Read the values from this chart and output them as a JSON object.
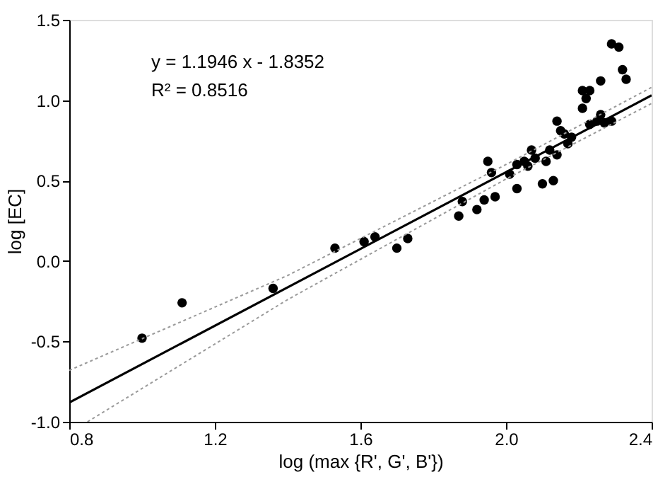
{
  "chart_data": {
    "type": "scatter",
    "xlabel": "log (max {R', G', B'})",
    "ylabel": "log [EC]",
    "xlim": [
      0.8,
      2.4
    ],
    "xticks": [
      {
        "value": 0.8,
        "label": "0.8"
      },
      {
        "value": 1.2,
        "label": "1.2"
      },
      {
        "value": 1.6,
        "label": "1.6"
      },
      {
        "value": 2.0,
        "label": "2.0"
      },
      {
        "value": 2.4,
        "label": "2.4"
      }
    ],
    "ylim": [
      -1.0,
      1.5
    ],
    "yticks": [
      {
        "value": -1.0,
        "label": "-1.0"
      },
      {
        "value": -0.5,
        "label": "-0.5"
      },
      {
        "value": 0.0,
        "label": "0.0"
      },
      {
        "value": 0.5,
        "label": "0.5"
      },
      {
        "value": 1.0,
        "label": "1.0"
      },
      {
        "value": 1.5,
        "label": "1.5"
      }
    ],
    "grid": false,
    "annotations": [
      "y = 1.1946 x - 1.8352",
      "R² = 0.8516"
    ],
    "series": [
      {
        "marker": "circle",
        "color": "#000000",
        "x": [
          1.0,
          1.11,
          1.36,
          1.53,
          1.61,
          1.64,
          1.7,
          1.73,
          1.87,
          1.92,
          1.88,
          1.94,
          1.97,
          2.03,
          1.95,
          1.96,
          2.01,
          2.03,
          2.05,
          2.06,
          2.07,
          2.08,
          2.11,
          2.1,
          2.13,
          2.12,
          2.14,
          2.14,
          2.15,
          2.16,
          2.18,
          2.17,
          2.21,
          2.23,
          2.22,
          2.21,
          2.26,
          2.23,
          2.25,
          2.26,
          2.27,
          2.29,
          2.29,
          2.31,
          2.32,
          2.33
        ],
        "values": [
          -0.48,
          -0.26,
          -0.17,
          0.08,
          0.12,
          0.15,
          0.08,
          0.14,
          0.28,
          0.32,
          0.37,
          0.38,
          0.4,
          0.45,
          0.62,
          0.55,
          0.54,
          0.6,
          0.62,
          0.59,
          0.69,
          0.64,
          0.62,
          0.48,
          0.5,
          0.69,
          0.66,
          0.87,
          0.81,
          0.79,
          0.77,
          0.73,
          1.06,
          1.06,
          1.01,
          0.95,
          1.12,
          0.85,
          0.87,
          0.91,
          0.86,
          0.87,
          1.35,
          1.33,
          1.19,
          1.13
        ]
      },
      {
        "type": "line",
        "marker": "none",
        "color": "#000000",
        "line_style": "solid",
        "x": [
          0.8,
          2.4
        ],
        "values": [
          -0.88,
          1.03
        ]
      },
      {
        "type": "line",
        "marker": "none",
        "color": "#999999",
        "line_style": "dotted",
        "x": [
          0.8,
          1.4,
          2.0,
          2.4
        ],
        "values": [
          -0.68,
          -0.09,
          0.6,
          1.08
        ]
      },
      {
        "type": "line",
        "marker": "none",
        "color": "#999999",
        "line_style": "dotted",
        "x": [
          0.85,
          1.4,
          2.0,
          2.4
        ],
        "values": [
          -1.0,
          -0.24,
          0.51,
          0.98
        ]
      }
    ]
  }
}
